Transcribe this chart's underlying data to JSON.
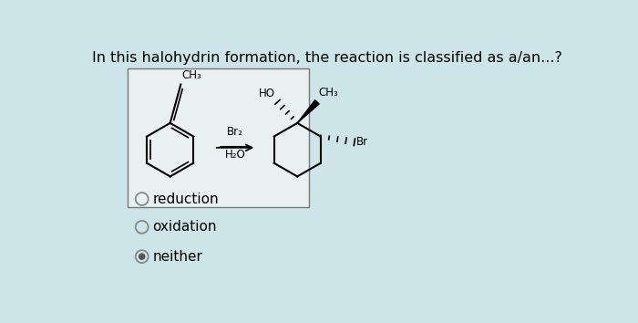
{
  "title": "In this halohydrin formation, the reaction is classified as a/an...?",
  "title_fontsize": 11.5,
  "background_color": "#cde4e8",
  "box_color": "#e8f0f2",
  "options": [
    "reduction",
    "oxidation",
    "neither"
  ],
  "option_selected": [
    false,
    false,
    true
  ],
  "reagent_above": "Br₂",
  "reagent_below": "H₂O"
}
